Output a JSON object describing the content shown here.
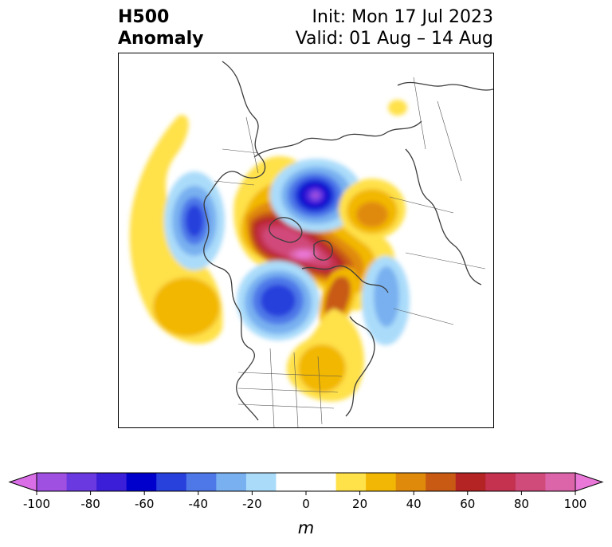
{
  "title": {
    "left_line1": "H500",
    "left_line2": "Anomaly",
    "right_line1": "Init: Mon 17 Jul 2023",
    "right_line2": "Valid: 01 Aug – 14 Aug"
  },
  "colorbar": {
    "ticks": [
      "-100",
      "-80",
      "-60",
      "-40",
      "-20",
      "0",
      "20",
      "40",
      "60",
      "80",
      "100"
    ],
    "units": "m",
    "colors": [
      "#d96ee6",
      "#a050e0",
      "#6a3ae0",
      "#3a1ed8",
      "#0000cc",
      "#2840dc",
      "#4e78e8",
      "#78b0f0",
      "#aadcfa",
      "#ffffff",
      "#ffffff",
      "#ffe14a",
      "#f2b705",
      "#e08a0c",
      "#c85a14",
      "#b42424",
      "#c43250",
      "#d04a7a",
      "#dc64a8",
      "#ea78d8"
    ]
  },
  "map": {
    "projection": "north-polar-stereographic",
    "variable": "500 hPa geopotential height anomaly",
    "features": [
      "coastlines",
      "country-borders",
      "us-state-borders",
      "canada-province-borders"
    ]
  }
}
